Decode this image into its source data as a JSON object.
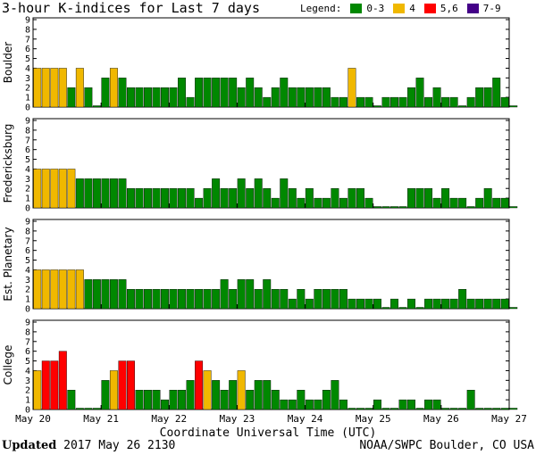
{
  "page": {
    "title": "3-hour K-indices for Last 7 days",
    "legend_title": "Legend:",
    "legend": [
      {
        "label": "0-3",
        "color": "#008800"
      },
      {
        "label": "4",
        "color": "#f0b800"
      },
      {
        "label": "5,6",
        "color": "#ff0000"
      },
      {
        "label": "7-9",
        "color": "#440088"
      }
    ],
    "xlabel": "Coordinate Universal Time (UTC)",
    "updated_label": "Updated",
    "updated_value": "2017 May 26 2130",
    "credit": "NOAA/SWPC Boulder, CO USA"
  },
  "chart_data": {
    "type": "bar",
    "ylim": [
      0,
      9
    ],
    "yticks": [
      0,
      1,
      2,
      3,
      4,
      5,
      6,
      7,
      8,
      9
    ],
    "xticks": [
      "May 20",
      "May 21",
      "May 22",
      "May 23",
      "May 24",
      "May 25",
      "May 26",
      "May 27"
    ],
    "intervals_per_day": 8,
    "color_scale": {
      "0-3": "#008800",
      "4": "#f0b800",
      "5,6": "#ff0000",
      "7-9": "#440088"
    },
    "series": [
      {
        "name": "Boulder",
        "values": [
          4,
          4,
          4,
          4,
          2,
          4,
          2,
          0,
          3,
          4,
          3,
          2,
          2,
          2,
          2,
          2,
          2,
          3,
          1,
          3,
          3,
          3,
          3,
          3,
          2,
          3,
          2,
          1,
          2,
          3,
          2,
          2,
          2,
          2,
          2,
          1,
          1,
          4,
          1,
          1,
          0,
          1,
          1,
          1,
          2,
          3,
          1,
          2,
          1,
          1,
          0,
          1,
          2,
          2,
          3,
          1,
          0
        ]
      },
      {
        "name": "Fredericksburg",
        "values": [
          4,
          4,
          4,
          4,
          4,
          3,
          3,
          3,
          3,
          3,
          3,
          2,
          2,
          2,
          2,
          2,
          2,
          2,
          2,
          1,
          2,
          3,
          2,
          2,
          3,
          2,
          3,
          2,
          1,
          3,
          2,
          1,
          2,
          1,
          1,
          2,
          1,
          2,
          2,
          1,
          0,
          0,
          0,
          0,
          2,
          2,
          2,
          1,
          2,
          1,
          1,
          0,
          1,
          2,
          1,
          1,
          0
        ]
      },
      {
        "name": "Est. Planetary",
        "values": [
          4,
          4,
          4,
          4,
          4,
          4,
          3,
          3,
          3,
          3,
          3,
          2,
          2,
          2,
          2,
          2,
          2,
          2,
          2,
          2,
          2,
          2,
          3,
          2,
          3,
          3,
          2,
          3,
          2,
          2,
          1,
          2,
          1,
          2,
          2,
          2,
          2,
          1,
          1,
          1,
          1,
          0,
          1,
          0,
          1,
          0,
          1,
          1,
          1,
          1,
          2,
          1,
          1,
          1,
          1,
          1,
          0
        ]
      },
      {
        "name": "College",
        "values": [
          4,
          5,
          5,
          6,
          2,
          0,
          0,
          0,
          3,
          4,
          5,
          5,
          2,
          2,
          2,
          1,
          2,
          2,
          3,
          5,
          4,
          3,
          2,
          3,
          4,
          2,
          3,
          3,
          2,
          1,
          1,
          2,
          1,
          1,
          2,
          3,
          1,
          0,
          0,
          0,
          1,
          0,
          0,
          1,
          1,
          0,
          1,
          1,
          0,
          0,
          0,
          2,
          0,
          0,
          0,
          0,
          0
        ]
      }
    ]
  }
}
